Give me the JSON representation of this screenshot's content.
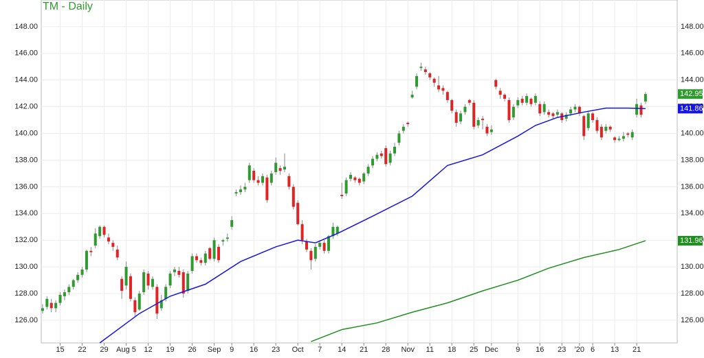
{
  "chart_data": {
    "type": "candlestick",
    "title": "TM - Daily",
    "xlim": [
      -0.3,
      144.2
    ],
    "xticks": [
      {
        "value": 4,
        "label": "15"
      },
      {
        "value": 9,
        "label": "22"
      },
      {
        "value": 14,
        "label": "29"
      },
      {
        "value": 19,
        "label": "Aug 5"
      },
      {
        "value": 24,
        "label": "12"
      },
      {
        "value": 29,
        "label": "19"
      },
      {
        "value": 34,
        "label": "26"
      },
      {
        "value": 39,
        "label": "Sep"
      },
      {
        "value": 43,
        "label": "9"
      },
      {
        "value": 48,
        "label": "16"
      },
      {
        "value": 53,
        "label": "23"
      },
      {
        "value": 58,
        "label": "Oct"
      },
      {
        "value": 63,
        "label": "7"
      },
      {
        "value": 68,
        "label": "14"
      },
      {
        "value": 73,
        "label": "21"
      },
      {
        "value": 78,
        "label": "28"
      },
      {
        "value": 83,
        "label": "Nov"
      },
      {
        "value": 88,
        "label": "11"
      },
      {
        "value": 93,
        "label": "18"
      },
      {
        "value": 98,
        "label": "25"
      },
      {
        "value": 102,
        "label": "Dec"
      },
      {
        "value": 108,
        "label": "9"
      },
      {
        "value": 113,
        "label": "16"
      },
      {
        "value": 118,
        "label": "23"
      },
      {
        "value": 122,
        "label": "'20"
      },
      {
        "value": 125,
        "label": "6"
      },
      {
        "value": 130,
        "label": "13"
      },
      {
        "value": 135,
        "label": "21"
      }
    ],
    "ylim": [
      124.3,
      150
    ],
    "yticks": [
      {
        "value": 126,
        "label": "126.00"
      },
      {
        "value": 128,
        "label": "128.00"
      },
      {
        "value": 130,
        "label": "130.00"
      },
      {
        "value": 132,
        "label": "132.00"
      },
      {
        "value": 134,
        "label": "134.00"
      },
      {
        "value": 136,
        "label": "136.00"
      },
      {
        "value": 138,
        "label": "138.00"
      },
      {
        "value": 140,
        "label": "140.00"
      },
      {
        "value": 142,
        "label": "142.00"
      },
      {
        "value": 144,
        "label": "144.00"
      },
      {
        "value": 146,
        "label": "146.00"
      },
      {
        "value": 148,
        "label": "148.00"
      }
    ],
    "grid": true,
    "series": [
      {
        "type": "candlestick",
        "color_up": "#2f9a2f",
        "color_down": "#e02424",
        "ohlc": [
          [
            126.7,
            127.2,
            126.5,
            126.9
          ],
          [
            127,
            127.8,
            126.8,
            127.6
          ],
          [
            127.3,
            127.6,
            126.6,
            126.9
          ],
          [
            126.9,
            127.5,
            126.6,
            127.3
          ],
          [
            127.3,
            128.1,
            127.1,
            127.9
          ],
          [
            127.8,
            128.3,
            127.5,
            128.1
          ],
          [
            128.1,
            128.7,
            127.9,
            128.5
          ],
          [
            128.5,
            129.1,
            128.3,
            129
          ],
          [
            129,
            129.6,
            128.8,
            129.4
          ],
          [
            129.4,
            130,
            129.2,
            129.8
          ],
          [
            129.8,
            131.3,
            129.6,
            131.2
          ],
          [
            131.2,
            131.5,
            130.8,
            131.1
          ],
          [
            131.6,
            132.9,
            131.4,
            132.5
          ],
          [
            132.3,
            133.1,
            132.1,
            133
          ],
          [
            133,
            133.1,
            132.2,
            132.4
          ],
          [
            132.2,
            132.5,
            131.7,
            131.9
          ],
          [
            131.8,
            132,
            131.2,
            131.5
          ],
          [
            131.3,
            131.6,
            130.5,
            130.7
          ],
          [
            129.1,
            129.3,
            127.6,
            128.2
          ],
          [
            128.6,
            130.4,
            128.3,
            130
          ],
          [
            129.3,
            129.5,
            127.4,
            127.6
          ],
          [
            127.5,
            127.7,
            126.3,
            126.6
          ],
          [
            126.8,
            128.2,
            126.7,
            128
          ],
          [
            128.1,
            129.8,
            127.9,
            129.6
          ],
          [
            129.5,
            129.7,
            128.3,
            128.6
          ],
          [
            128.5,
            129.3,
            128.3,
            129.1
          ],
          [
            128.5,
            128.7,
            126.1,
            126.5
          ],
          [
            126.9,
            127.9,
            126.7,
            127.5
          ],
          [
            127.6,
            128.7,
            127.4,
            128.5
          ],
          [
            128.6,
            129.7,
            128.4,
            129.5
          ],
          [
            129.6,
            130,
            129.3,
            129.8
          ],
          [
            129.7,
            130,
            129.2,
            129.4
          ],
          [
            129.6,
            129.8,
            127.7,
            128
          ],
          [
            128.2,
            129.7,
            128,
            129.5
          ],
          [
            129.7,
            131,
            129.5,
            130.8
          ],
          [
            130.8,
            131,
            130.3,
            130.5
          ],
          [
            130.5,
            130.7,
            130.1,
            130.3
          ],
          [
            130.3,
            131.2,
            130.1,
            131
          ],
          [
            131.4,
            131.5,
            130.5,
            130.6
          ],
          [
            130.6,
            132.2,
            130.4,
            132
          ],
          [
            131.5,
            131.7,
            130.3,
            130.5
          ],
          [
            131.9,
            132.1,
            131.6,
            132
          ],
          [
            132.1,
            132.5,
            131.9,
            132.2
          ],
          [
            133,
            133.8,
            132.8,
            133.5
          ],
          [
            135.5,
            135.8,
            135.3,
            135.6
          ],
          [
            135.6,
            136.1,
            135.4,
            135.8
          ],
          [
            135.8,
            136.3,
            135.6,
            136
          ],
          [
            136.5,
            137.8,
            136.3,
            137.6
          ],
          [
            137.2,
            137.4,
            136.3,
            136.5
          ],
          [
            136.5,
            136.8,
            136.1,
            136.3
          ],
          [
            136.3,
            137,
            136.1,
            136.8
          ],
          [
            136.7,
            136.9,
            134.8,
            135
          ],
          [
            136.3,
            137.2,
            136.1,
            137
          ],
          [
            137.1,
            138.2,
            136.9,
            137.8
          ],
          [
            137.4,
            137.6,
            136.9,
            137.2
          ],
          [
            137.3,
            138.5,
            137.1,
            137.5
          ],
          [
            136.8,
            137,
            135.8,
            136
          ],
          [
            136,
            136.2,
            134.3,
            134.5
          ],
          [
            134.8,
            135,
            133.1,
            133.2
          ],
          [
            133.2,
            133.5,
            131.7,
            132
          ],
          [
            131.9,
            132.1,
            131.1,
            131.3
          ],
          [
            131.2,
            131.4,
            129.8,
            130.5
          ],
          [
            130.6,
            131.7,
            130.4,
            131.5
          ],
          [
            131.5,
            132,
            131.3,
            131.8
          ],
          [
            131.8,
            132,
            131,
            131.2
          ],
          [
            131.2,
            132.4,
            131,
            132.3
          ],
          [
            132.3,
            133.3,
            132.1,
            133
          ],
          [
            132.5,
            133.1,
            132.3,
            133
          ],
          [
            135.4,
            136.3,
            135.1,
            135.3
          ],
          [
            135.5,
            136.7,
            135.3,
            136.5
          ],
          [
            136.6,
            137.1,
            136.4,
            136.9
          ],
          [
            136.7,
            136.8,
            136.3,
            136.5
          ],
          [
            136.6,
            136.7,
            136.1,
            136.3
          ],
          [
            136.4,
            137.1,
            136.2,
            137
          ],
          [
            137,
            137.7,
            136.8,
            137.5
          ],
          [
            137.6,
            138.3,
            137.4,
            138.1
          ],
          [
            138.1,
            138.6,
            137.9,
            138.4
          ],
          [
            138.5,
            138.7,
            138.1,
            138.3
          ],
          [
            138.9,
            139.1,
            137.5,
            137.7
          ],
          [
            137.8,
            138.7,
            137.6,
            138.5
          ],
          [
            138.5,
            139.3,
            138.3,
            139
          ],
          [
            139.3,
            140.2,
            139.1,
            140
          ],
          [
            140.2,
            140.7,
            140,
            140.5
          ],
          [
            140.8,
            140.9,
            140.5,
            140.7
          ],
          [
            142.7,
            143.2,
            142.6,
            142.9
          ],
          [
            143.5,
            144.5,
            143.3,
            144.3
          ],
          [
            144.9,
            145.3,
            144.7,
            145
          ],
          [
            144.8,
            145,
            144.4,
            144.6
          ],
          [
            144.5,
            144.6,
            144,
            144.2
          ],
          [
            144.1,
            144.2,
            143.5,
            143.8
          ],
          [
            143.6,
            144.3,
            143.1,
            143.3
          ],
          [
            143.4,
            143.6,
            142.9,
            143.2
          ],
          [
            143.1,
            143.2,
            142.3,
            142.5
          ],
          [
            142.5,
            142.6,
            141.5,
            141.7
          ],
          [
            141.6,
            141.8,
            140.5,
            140.8
          ],
          [
            140.9,
            141.7,
            140.7,
            141.5
          ],
          [
            141.6,
            142.2,
            141.4,
            142
          ],
          [
            142.5,
            142.6,
            142.1,
            142.3
          ],
          [
            142.3,
            142.5,
            140.3,
            140.5
          ],
          [
            140.6,
            141.2,
            140.4,
            141
          ],
          [
            141.1,
            141.3,
            140.3,
            141
          ],
          [
            140.5,
            140.7,
            139.8,
            140
          ],
          [
            140.1,
            140.6,
            139.9,
            140.3
          ],
          [
            144,
            144.1,
            143.3,
            143.5
          ],
          [
            143.2,
            143.4,
            142.6,
            142.9
          ],
          [
            142.9,
            143,
            142.4,
            142.6
          ],
          [
            142.5,
            142.7,
            140.8,
            141
          ],
          [
            141.2,
            142.2,
            141,
            142
          ],
          [
            142.1,
            142.7,
            141.9,
            142.5
          ],
          [
            142.6,
            142.8,
            142.1,
            142.3
          ],
          [
            142.3,
            143,
            142.1,
            142.8
          ],
          [
            142.6,
            142.7,
            142,
            142.2
          ],
          [
            142.3,
            143,
            142.1,
            142.8
          ],
          [
            142.2,
            142.4,
            141.3,
            141.5
          ],
          [
            141.6,
            142.4,
            141.4,
            142.2
          ],
          [
            141.6,
            141.8,
            141.2,
            141.4
          ],
          [
            141.5,
            141.6,
            141.1,
            141.3
          ],
          [
            141.4,
            141.8,
            141.2,
            141.6
          ],
          [
            141.5,
            141.6,
            140.8,
            141
          ],
          [
            141.1,
            141.6,
            140.9,
            141.4
          ],
          [
            141.5,
            142,
            141.3,
            141.8
          ],
          [
            141.8,
            142.2,
            141.6,
            142
          ],
          [
            142,
            142.1,
            141.3,
            141.5
          ],
          [
            141.3,
            141.4,
            139.5,
            139.8
          ],
          [
            140.4,
            141.7,
            140.2,
            141.5
          ],
          [
            141.5,
            141.6,
            140.8,
            141
          ],
          [
            141,
            141.2,
            140,
            140.2
          ],
          [
            140.5,
            140.7,
            139.5,
            139.7
          ],
          [
            140.2,
            140.7,
            140,
            140.5
          ],
          [
            140.5,
            140.6,
            140.1,
            140.3
          ],
          [
            139.7,
            139.8,
            139.3,
            139.5
          ],
          [
            139.5,
            139.8,
            139.4,
            139.6
          ],
          [
            139.6,
            140.1,
            139.4,
            139.8
          ],
          [
            140,
            140.1,
            139.7,
            139.9
          ],
          [
            139.7,
            140.3,
            139.5,
            140.1
          ],
          [
            141.4,
            142.6,
            141.2,
            142.2
          ],
          [
            142.1,
            142.3,
            141.2,
            141.4
          ],
          [
            142.4,
            143.1,
            142.2,
            142.95
          ]
        ]
      },
      {
        "type": "line",
        "color": "#1414e6",
        "x": [
          13,
          22,
          29,
          37,
          45,
          53,
          58,
          62,
          67,
          75,
          84,
          92,
          100,
          108,
          112,
          117,
          123,
          128,
          133,
          137
        ],
        "values": [
          124.3,
          126.5,
          127.8,
          128.7,
          130.4,
          131.5,
          132,
          131.8,
          132.5,
          133.8,
          135.3,
          137.6,
          138.4,
          139.8,
          140.6,
          141.2,
          141.6,
          141.9,
          141.9,
          141.86
        ]
      },
      {
        "type": "line",
        "color": "#1f8f1f",
        "x": [
          61,
          68,
          76,
          84,
          92,
          100,
          108,
          115,
          123,
          131,
          137
        ],
        "values": [
          124.4,
          125.3,
          125.8,
          126.6,
          127.3,
          128.2,
          129,
          129.9,
          130.7,
          131.3,
          131.96
        ]
      }
    ]
  }
}
